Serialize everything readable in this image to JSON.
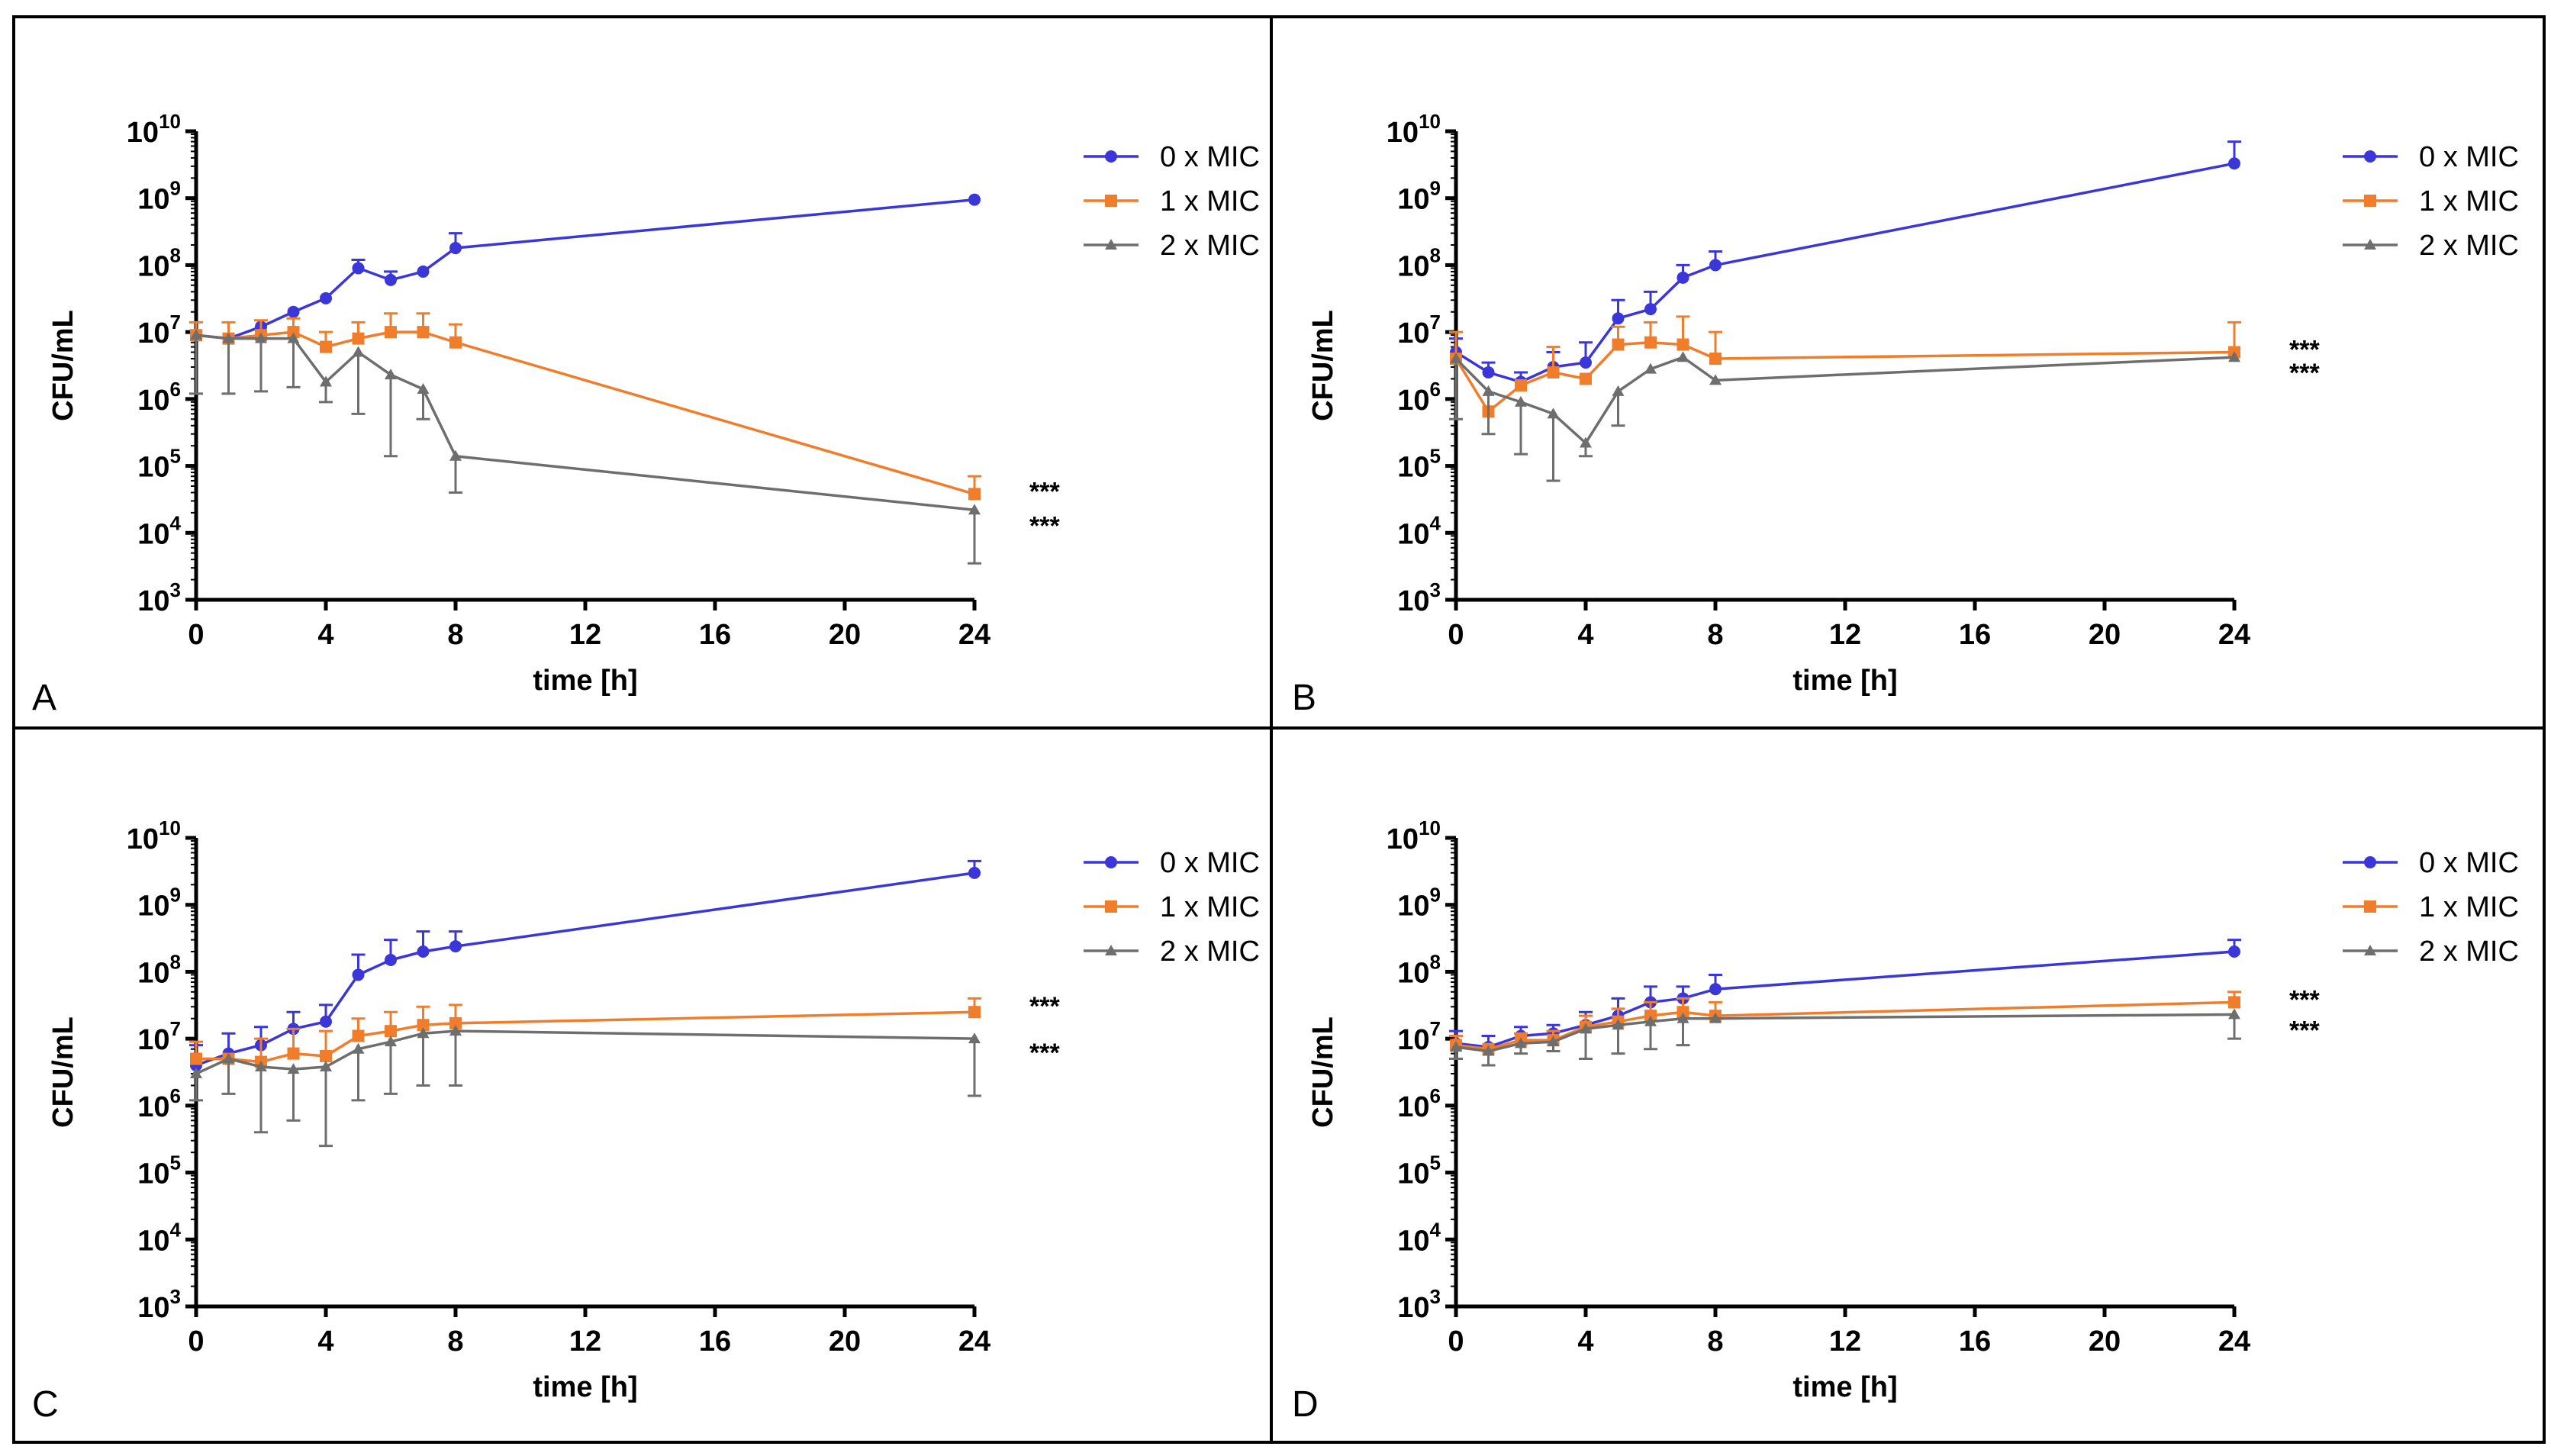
{
  "colors": {
    "mic0": "#3b36d8",
    "mic1": "#f07d2b",
    "mic2": "#6e6e6e",
    "frame": "#000000"
  },
  "legend": [
    "0 x MIC",
    "1 x MIC",
    "2 x MIC"
  ],
  "chart_data": [
    {
      "panel": "A",
      "type": "line",
      "xlabel": "time [h]",
      "ylabel": "CFU/mL",
      "yscale": "log10",
      "xlim": [
        0,
        24
      ],
      "ylim": [
        1000,
        10000000000
      ],
      "xticks": [
        0,
        4,
        8,
        12,
        16,
        20,
        24
      ],
      "yticks": [
        3,
        4,
        5,
        6,
        7,
        8,
        9,
        10
      ],
      "legend_position": "top-right",
      "significance": [
        "***",
        "***"
      ],
      "series": [
        {
          "name": "0 x MIC",
          "marker": "circle",
          "x": [
            0,
            1,
            2,
            3,
            4,
            5,
            6,
            7,
            8,
            24
          ],
          "y": [
            9000000.0,
            8000000.0,
            12000000.0,
            20000000.0,
            32000000.0,
            90000000.0,
            60000000.0,
            80000000.0,
            180000000.0,
            950000000.0
          ],
          "err": [
            null,
            null,
            null,
            null,
            null,
            120000000.0,
            80000000.0,
            null,
            300000000.0,
            null
          ]
        },
        {
          "name": "1 x MIC",
          "marker": "square",
          "x": [
            0,
            1,
            2,
            3,
            4,
            5,
            6,
            7,
            8,
            24
          ],
          "y": [
            9000000.0,
            8000000.0,
            9000000.0,
            10000000.0,
            6000000.0,
            8000000.0,
            10000000.0,
            10000000.0,
            7000000.0,
            38000.0
          ],
          "err": [
            14000000.0,
            14000000.0,
            15000000.0,
            16000000.0,
            10000000.0,
            14000000.0,
            19000000.0,
            19000000.0,
            13000000.0,
            70000.0
          ]
        },
        {
          "name": "2 x MIC",
          "marker": "triangle",
          "x": [
            0,
            1,
            2,
            3,
            4,
            5,
            6,
            7,
            8,
            24
          ],
          "y": [
            9000000.0,
            8000000.0,
            8000000.0,
            8000000.0,
            1800000.0,
            5000000.0,
            2300000.0,
            1400000.0,
            140000.0,
            22000.0
          ],
          "err": [
            1200000.0,
            1200000.0,
            1300000.0,
            1500000.0,
            900000.0,
            600000.0,
            140000.0,
            500000.0,
            40000.0,
            3500.0
          ]
        }
      ]
    },
    {
      "panel": "B",
      "type": "line",
      "xlabel": "time [h]",
      "ylabel": "CFU/mL",
      "yscale": "log10",
      "xlim": [
        0,
        24
      ],
      "ylim": [
        1000,
        10000000000
      ],
      "xticks": [
        0,
        4,
        8,
        12,
        16,
        20,
        24
      ],
      "yticks": [
        3,
        4,
        5,
        6,
        7,
        8,
        9,
        10
      ],
      "legend_position": "top-right",
      "significance": [
        "***",
        "***"
      ],
      "series": [
        {
          "name": "0 x MIC",
          "marker": "circle",
          "x": [
            0,
            1,
            2,
            3,
            4,
            5,
            6,
            7,
            8,
            24
          ],
          "y": [
            5000000.0,
            2500000.0,
            1800000.0,
            3000000.0,
            3500000.0,
            16000000.0,
            22000000.0,
            65000000.0,
            100000000.0,
            3300000000.0
          ],
          "err": [
            8000000.0,
            3500000.0,
            2500000.0,
            5000000.0,
            7000000.0,
            30000000.0,
            40000000.0,
            100000000.0,
            160000000.0,
            7000000000.0
          ]
        },
        {
          "name": "1 x MIC",
          "marker": "square",
          "x": [
            0,
            1,
            2,
            3,
            4,
            5,
            6,
            7,
            8,
            24
          ],
          "y": [
            4000000.0,
            650000.0,
            1600000.0,
            2500000.0,
            2000000.0,
            6500000.0,
            7000000.0,
            6500000.0,
            4000000.0,
            5000000.0
          ],
          "err": [
            10000000.0,
            null,
            null,
            6000000.0,
            null,
            12000000.0,
            14000000.0,
            17000000.0,
            10000000.0,
            14000000.0
          ]
        },
        {
          "name": "2 x MIC",
          "marker": "triangle",
          "x": [
            0,
            1,
            2,
            3,
            4,
            5,
            6,
            7,
            8,
            24
          ],
          "y": [
            4000000.0,
            1300000.0,
            900000.0,
            600000.0,
            220000.0,
            1300000.0,
            2800000.0,
            4200000.0,
            1900000.0,
            4200000.0
          ],
          "err": [
            500000.0,
            300000.0,
            150000.0,
            60000.0,
            140000.0,
            400000.0,
            null,
            null,
            null,
            null
          ]
        }
      ]
    },
    {
      "panel": "C",
      "type": "line",
      "xlabel": "time [h]",
      "ylabel": "CFU/mL",
      "yscale": "log10",
      "xlim": [
        0,
        24
      ],
      "ylim": [
        1000,
        10000000000
      ],
      "xticks": [
        0,
        4,
        8,
        12,
        16,
        20,
        24
      ],
      "yticks": [
        3,
        4,
        5,
        6,
        7,
        8,
        9,
        10
      ],
      "legend_position": "top-right",
      "significance": [
        "***",
        "***"
      ],
      "series": [
        {
          "name": "0 x MIC",
          "marker": "circle",
          "x": [
            0,
            1,
            2,
            3,
            4,
            5,
            6,
            7,
            8,
            24
          ],
          "y": [
            4000000.0,
            6000000.0,
            8000000.0,
            14000000.0,
            18000000.0,
            90000000.0,
            150000000.0,
            200000000.0,
            240000000.0,
            3000000000.0
          ],
          "err": [
            8000000.0,
            12000000.0,
            15000000.0,
            25000000.0,
            32000000.0,
            180000000.0,
            300000000.0,
            400000000.0,
            400000000.0,
            4500000000.0
          ]
        },
        {
          "name": "1 x MIC",
          "marker": "square",
          "x": [
            0,
            1,
            2,
            3,
            4,
            5,
            6,
            7,
            8,
            24
          ],
          "y": [
            5000000.0,
            5000000.0,
            4500000.0,
            6000000.0,
            5500000.0,
            11000000.0,
            13000000.0,
            16000000.0,
            17000000.0,
            25000000.0
          ],
          "err": [
            9000000.0,
            null,
            10000000.0,
            14000000.0,
            13000000.0,
            20000000.0,
            25000000.0,
            30000000.0,
            32000000.0,
            40000000.0
          ]
        },
        {
          "name": "2 x MIC",
          "marker": "triangle",
          "x": [
            0,
            1,
            2,
            3,
            4,
            5,
            6,
            7,
            8,
            24
          ],
          "y": [
            3000000.0,
            5000000.0,
            3800000.0,
            3500000.0,
            3800000.0,
            7000000.0,
            9000000.0,
            12000000.0,
            13000000.0,
            10000000.0
          ],
          "err": [
            1200000.0,
            1500000.0,
            400000.0,
            600000.0,
            250000.0,
            1200000.0,
            1500000.0,
            2000000.0,
            2000000.0,
            1400000.0
          ]
        }
      ]
    },
    {
      "panel": "D",
      "type": "line",
      "xlabel": "time [h]",
      "ylabel": "CFU/mL",
      "yscale": "log10",
      "xlim": [
        0,
        24
      ],
      "ylim": [
        1000,
        10000000000
      ],
      "xticks": [
        0,
        4,
        8,
        12,
        16,
        20,
        24
      ],
      "yticks": [
        3,
        4,
        5,
        6,
        7,
        8,
        9,
        10
      ],
      "legend_position": "top-right",
      "significance": [
        "***",
        "***"
      ],
      "series": [
        {
          "name": "0 x MIC",
          "marker": "circle",
          "x": [
            0,
            1,
            2,
            3,
            4,
            5,
            6,
            7,
            8,
            24
          ],
          "y": [
            8500000.0,
            7500000.0,
            11000000.0,
            12000000.0,
            16000000.0,
            22000000.0,
            35000000.0,
            40000000.0,
            55000000.0,
            200000000.0
          ],
          "err": [
            13000000.0,
            11000000.0,
            15000000.0,
            16000000.0,
            25000000.0,
            40000000.0,
            60000000.0,
            60000000.0,
            90000000.0,
            300000000.0
          ]
        },
        {
          "name": "1 x MIC",
          "marker": "square",
          "x": [
            0,
            1,
            2,
            3,
            4,
            5,
            6,
            7,
            8,
            24
          ],
          "y": [
            8000000.0,
            7000000.0,
            9500000.0,
            9500000.0,
            15000000.0,
            18000000.0,
            22000000.0,
            25000000.0,
            22000000.0,
            35000000.0
          ],
          "err": [
            11000000.0,
            null,
            12000000.0,
            13000000.0,
            22000000.0,
            28000000.0,
            35000000.0,
            40000000.0,
            35000000.0,
            50000000.0
          ]
        },
        {
          "name": "2 x MIC",
          "marker": "triangle",
          "x": [
            0,
            1,
            2,
            3,
            4,
            5,
            6,
            7,
            8,
            24
          ],
          "y": [
            7500000.0,
            6500000.0,
            8500000.0,
            9000000.0,
            14000000.0,
            16000000.0,
            18000000.0,
            20000000.0,
            20000000.0,
            23000000.0
          ],
          "err": [
            5000000.0,
            4000000.0,
            6000000.0,
            6500000.0,
            5000000.0,
            6000000.0,
            7000000.0,
            8000000.0,
            null,
            10000000.0
          ]
        }
      ]
    }
  ]
}
